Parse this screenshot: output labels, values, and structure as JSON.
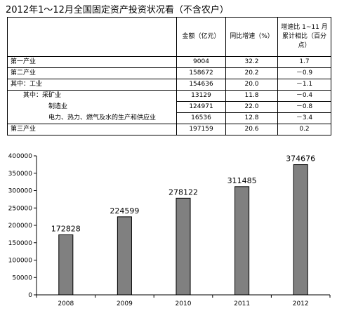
{
  "title": "2012年1～12月全国固定资产投资状况看（不含农户）",
  "table": {
    "headers": [
      "",
      "金额（亿元）",
      "同比增速（%）",
      "增速比 1~11 月累计相比（百分点）"
    ],
    "rows": [
      {
        "name": "第一产业",
        "amount": "9004",
        "growth": "32.2",
        "change": "1.7"
      },
      {
        "name": "第二产业",
        "amount": "158672",
        "growth": "20.2",
        "change": "－0.9"
      },
      {
        "name": "其中：工业",
        "amount": "154636",
        "growth": "20.0",
        "change": "－1.1"
      },
      {
        "name": "其中：采矿业",
        "amount": "13129",
        "growth": "11.8",
        "change": "－0.4"
      },
      {
        "name": "制造业",
        "amount": "124971",
        "growth": "22.0",
        "change": "－0.8"
      },
      {
        "name": "电力、热力、燃气及水的生产和供应业",
        "amount": "16536",
        "growth": "12.8",
        "change": "－3.4"
      },
      {
        "name": "第三产业",
        "amount": "197159",
        "growth": "20.6",
        "change": "0.2"
      }
    ]
  },
  "chart_data": {
    "type": "bar",
    "categories": [
      "2008",
      "2009",
      "2010",
      "2011",
      "2012"
    ],
    "values": [
      172828,
      224599,
      278122,
      311485,
      374676
    ],
    "value_labels": [
      "172828",
      "224599",
      "278122",
      "311485",
      "374676"
    ],
    "ylim": [
      0,
      400000
    ],
    "yticks": [
      "0",
      "50000",
      "100000",
      "150000",
      "200000",
      "250000",
      "300000",
      "350000",
      "400000"
    ],
    "grid": false,
    "bar_color": "#808080",
    "bar_stroke": "#000000"
  }
}
